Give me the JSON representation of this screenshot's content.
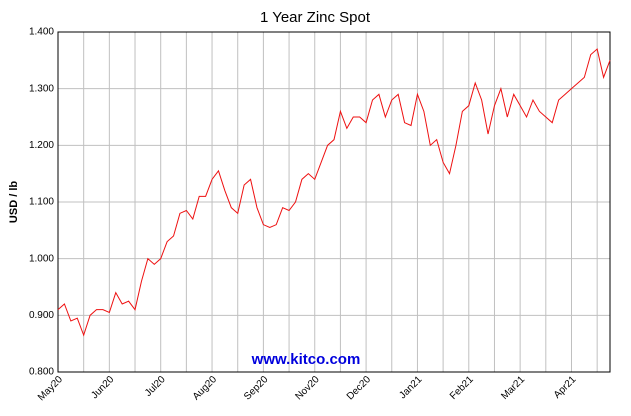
{
  "chart_data": {
    "type": "line",
    "title": "1 Year Zinc Spot",
    "ylabel": "USD / lb",
    "watermark": "www.kitco.com",
    "categories": [
      "May20",
      null,
      null,
      null,
      null,
      null,
      null,
      null,
      "Jun20",
      null,
      null,
      null,
      null,
      null,
      null,
      null,
      "Jul20",
      null,
      null,
      null,
      null,
      null,
      null,
      null,
      "Aug20",
      null,
      null,
      null,
      null,
      null,
      null,
      null,
      "Sep20",
      null,
      null,
      null,
      null,
      null,
      null,
      null,
      "Nov20",
      null,
      null,
      null,
      null,
      null,
      null,
      null,
      "Dec20",
      null,
      null,
      null,
      null,
      null,
      null,
      null,
      "Jan21",
      null,
      null,
      null,
      null,
      null,
      null,
      null,
      "Feb21",
      null,
      null,
      null,
      null,
      null,
      null,
      null,
      "Mar21",
      null,
      null,
      null,
      null,
      null,
      null,
      null,
      "Apr21",
      null,
      null,
      null,
      null,
      null,
      null
    ],
    "series": [
      {
        "name": "Zinc",
        "color": "#ee1111",
        "values": [
          0.91,
          0.92,
          0.89,
          0.895,
          0.865,
          0.9,
          0.91,
          0.91,
          0.905,
          0.94,
          0.92,
          0.925,
          0.91,
          0.96,
          1.0,
          0.99,
          1.0,
          1.03,
          1.04,
          1.08,
          1.085,
          1.07,
          1.11,
          1.11,
          1.14,
          1.155,
          1.12,
          1.09,
          1.08,
          1.13,
          1.14,
          1.09,
          1.06,
          1.055,
          1.06,
          1.09,
          1.085,
          1.1,
          1.14,
          1.15,
          1.14,
          1.17,
          1.2,
          1.21,
          1.26,
          1.23,
          1.25,
          1.25,
          1.24,
          1.28,
          1.29,
          1.25,
          1.28,
          1.29,
          1.24,
          1.235,
          1.29,
          1.26,
          1.2,
          1.21,
          1.17,
          1.15,
          1.2,
          1.26,
          1.27,
          1.31,
          1.28,
          1.22,
          1.27,
          1.3,
          1.25,
          1.29,
          1.27,
          1.25,
          1.28,
          1.26,
          1.25,
          1.24,
          1.28,
          1.29,
          1.3,
          1.31,
          1.32,
          1.36,
          1.37,
          1.32,
          1.35
        ]
      }
    ],
    "ylim": [
      0.8,
      1.4
    ],
    "yticks": [
      {
        "value": 0.8,
        "label": "0.800"
      },
      {
        "value": 0.9,
        "label": "0.900"
      },
      {
        "value": 1.0,
        "label": "1.000"
      },
      {
        "value": 1.1,
        "label": "1.100"
      },
      {
        "value": 1.2,
        "label": "1.200"
      },
      {
        "value": 1.3,
        "label": "1.300"
      },
      {
        "value": 1.4,
        "label": "1.400"
      }
    ],
    "grid": true
  }
}
